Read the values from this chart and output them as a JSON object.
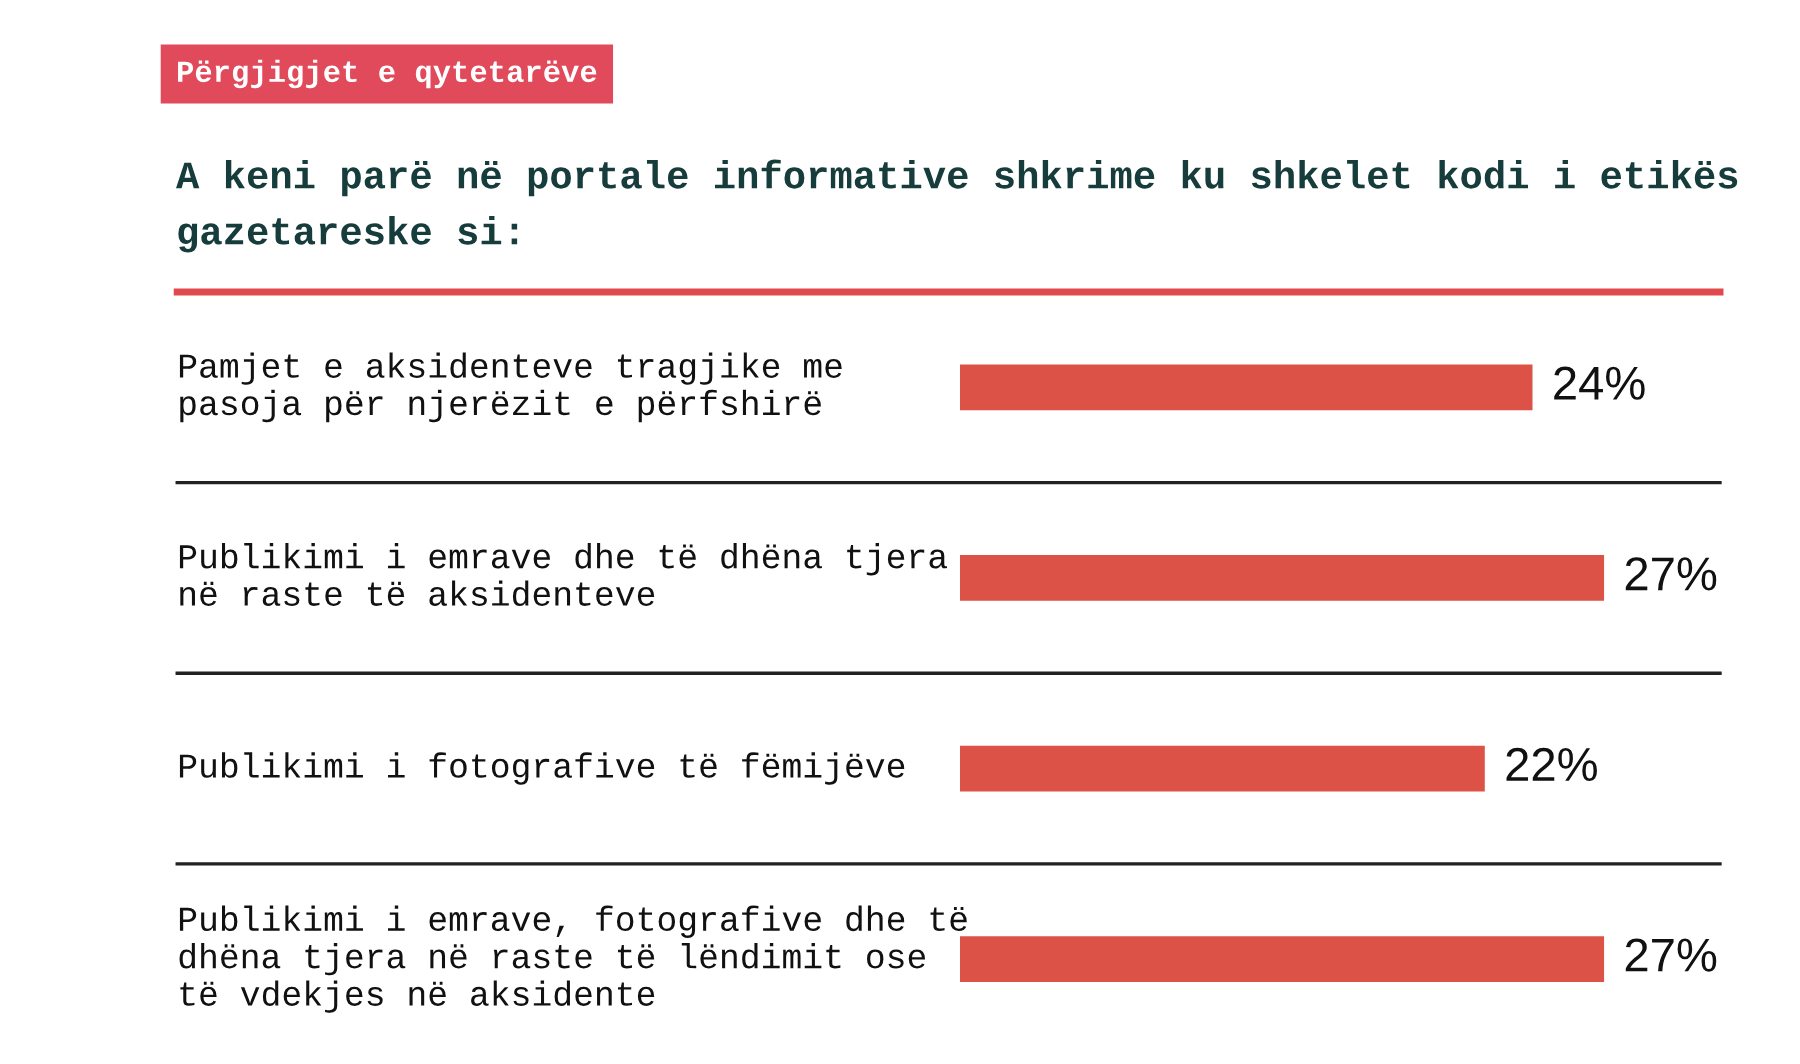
{
  "chart_data": {
    "type": "bar",
    "orientation": "horizontal",
    "subtitle": "Përgjigjet e qytetarëve",
    "title": "A keni parë në portale informative shkrime ku shkelet kodi i etikës\ngazetareske si:",
    "categories": [
      "Pamjet e aksidenteve tragjike me\npasoja për njerëzit e përfshirë",
      "Publikimi i emrave dhe të dhëna tjera\nnë raste të aksidenteve",
      "Publikimi i fotografive të fëmijëve",
      "Publikimi i emrave, fotografive dhe të\ndhëna tjera në raste të lëndimit ose\ntë vdekjes në aksidente"
    ],
    "values": [
      24,
      27,
      22,
      27
    ],
    "value_labels": [
      "24%",
      "27%",
      "22%",
      "27%"
    ],
    "color": "#dc5247"
  }
}
